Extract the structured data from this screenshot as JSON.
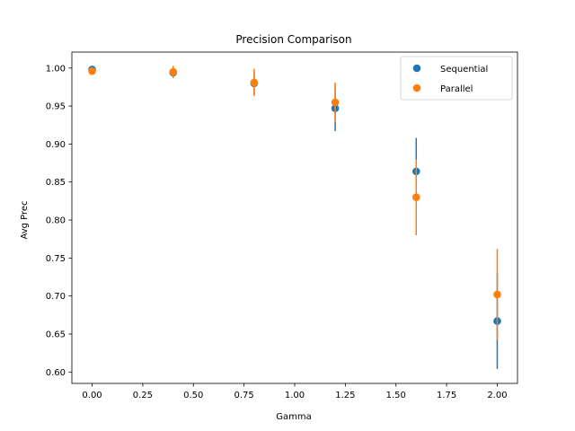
{
  "chart_data": {
    "type": "scatter",
    "title": "Precision Comparison",
    "xlabel": "Gamma",
    "ylabel": "Avg Prec",
    "xlim": [
      -0.1,
      2.1
    ],
    "ylim": [
      0.585,
      1.021
    ],
    "xticks": [
      0.0,
      0.25,
      0.5,
      0.75,
      1.0,
      1.25,
      1.5,
      1.75,
      2.0
    ],
    "xtick_labels": [
      "0.00",
      "0.25",
      "0.50",
      "0.75",
      "1.00",
      "1.25",
      "1.50",
      "1.75",
      "2.00"
    ],
    "yticks": [
      0.6,
      0.65,
      0.7,
      0.75,
      0.8,
      0.85,
      0.9,
      0.95,
      1.0
    ],
    "ytick_labels": [
      "0.60",
      "0.65",
      "0.70",
      "0.75",
      "0.80",
      "0.85",
      "0.90",
      "0.95",
      "1.00"
    ],
    "grid": false,
    "legend_position": "top-right",
    "series": [
      {
        "name": "Sequential",
        "color": "#1f77b4",
        "x": [
          0.0,
          0.4,
          0.8,
          1.2,
          1.6,
          2.0
        ],
        "y": [
          0.998,
          0.994,
          0.98,
          0.947,
          0.864,
          0.667
        ],
        "yerr": [
          0.002,
          0.007,
          0.015,
          0.03,
          0.044,
          0.063
        ]
      },
      {
        "name": "Parallel",
        "color": "#ff7f0e",
        "x": [
          0.0,
          0.4,
          0.8,
          1.2,
          1.6,
          2.0
        ],
        "y": [
          0.996,
          0.995,
          0.981,
          0.955,
          0.83,
          0.702
        ],
        "yerr": [
          0.002,
          0.008,
          0.018,
          0.026,
          0.05,
          0.06
        ]
      }
    ]
  }
}
